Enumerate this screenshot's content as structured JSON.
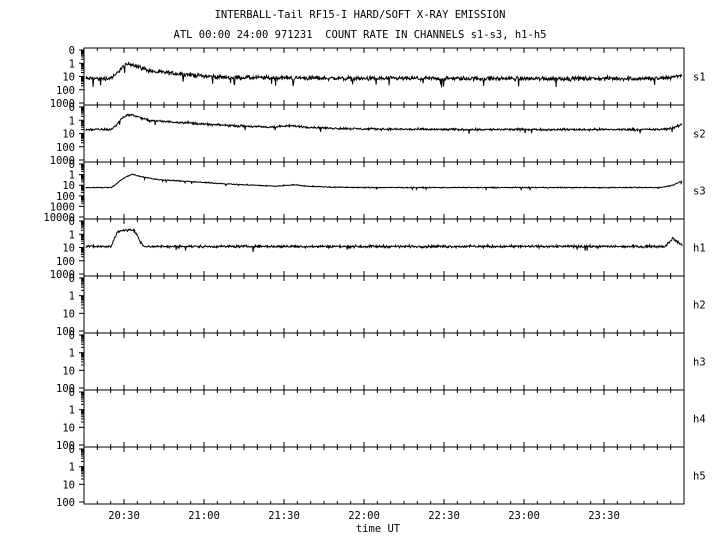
{
  "header": {
    "title": "INTERBALL-Tail RF15-I HARD/SOFT X-RAY EMISSION",
    "subtitle": "ATL 00:00 24:00 971231  COUNT RATE IN CHANNELS s1-s3, h1-h5"
  },
  "chart_data": {
    "type": "line",
    "layout": "stacked-panels",
    "xlabel": "time UT",
    "x_ticks": [
      "20:30",
      "21:00",
      "21:30",
      "22:00",
      "22:30",
      "23:00",
      "23:30"
    ],
    "x_tick_hours": [
      20.5,
      21.0,
      21.5,
      22.0,
      22.5,
      23.0,
      23.5
    ],
    "xlim_hours": [
      20.25,
      24.0
    ],
    "y_scale": "log",
    "panels": [
      {
        "channel": "s1",
        "y_tick_labels": [
          "1000",
          "100",
          "10",
          "1",
          "0"
        ],
        "y_tick_values": [
          1000,
          100,
          10,
          1,
          0
        ],
        "series": [
          {
            "t": 20.26,
            "v": 7
          },
          {
            "t": 20.3,
            "v": 7
          },
          {
            "t": 20.35,
            "v": 7
          },
          {
            "t": 20.4,
            "v": 7
          },
          {
            "t": 20.44,
            "v": 10
          },
          {
            "t": 20.47,
            "v": 30
          },
          {
            "t": 20.5,
            "v": 60
          },
          {
            "t": 20.53,
            "v": 90
          },
          {
            "t": 20.56,
            "v": 80
          },
          {
            "t": 20.6,
            "v": 50
          },
          {
            "t": 20.65,
            "v": 30
          },
          {
            "t": 20.7,
            "v": 22
          },
          {
            "t": 20.8,
            "v": 18
          },
          {
            "t": 20.9,
            "v": 14
          },
          {
            "t": 21.0,
            "v": 11
          },
          {
            "t": 21.1,
            "v": 9
          },
          {
            "t": 21.3,
            "v": 8
          },
          {
            "t": 21.5,
            "v": 8
          },
          {
            "t": 22.0,
            "v": 7
          },
          {
            "t": 22.5,
            "v": 7
          },
          {
            "t": 23.0,
            "v": 7
          },
          {
            "t": 23.5,
            "v": 7
          },
          {
            "t": 23.85,
            "v": 7
          },
          {
            "t": 23.93,
            "v": 9
          },
          {
            "t": 23.97,
            "v": 12
          },
          {
            "t": 23.99,
            "v": 10
          }
        ],
        "noise_decades": 0.14
      },
      {
        "channel": "s2",
        "y_tick_labels": [
          "1000",
          "100",
          "10",
          "1",
          "0"
        ],
        "y_tick_values": [
          1000,
          100,
          10,
          1,
          0
        ],
        "series": [
          {
            "t": 20.26,
            "v": 20
          },
          {
            "t": 20.35,
            "v": 20
          },
          {
            "t": 20.42,
            "v": 20
          },
          {
            "t": 20.45,
            "v": 40
          },
          {
            "t": 20.48,
            "v": 120
          },
          {
            "t": 20.52,
            "v": 250
          },
          {
            "t": 20.55,
            "v": 260
          },
          {
            "t": 20.6,
            "v": 160
          },
          {
            "t": 20.65,
            "v": 100
          },
          {
            "t": 20.75,
            "v": 80
          },
          {
            "t": 20.9,
            "v": 65
          },
          {
            "t": 21.0,
            "v": 50
          },
          {
            "t": 21.2,
            "v": 38
          },
          {
            "t": 21.4,
            "v": 30
          },
          {
            "t": 21.5,
            "v": 35
          },
          {
            "t": 21.55,
            "v": 38
          },
          {
            "t": 21.65,
            "v": 30
          },
          {
            "t": 21.8,
            "v": 25
          },
          {
            "t": 22.0,
            "v": 22
          },
          {
            "t": 22.5,
            "v": 20
          },
          {
            "t": 23.0,
            "v": 20
          },
          {
            "t": 23.5,
            "v": 20
          },
          {
            "t": 23.85,
            "v": 20
          },
          {
            "t": 23.93,
            "v": 25
          },
          {
            "t": 23.97,
            "v": 40
          },
          {
            "t": 23.99,
            "v": 50
          }
        ],
        "noise_decades": 0.07
      },
      {
        "channel": "s3",
        "y_tick_labels": [
          "10000",
          "1000",
          "100",
          "10",
          "1",
          "0"
        ],
        "y_tick_values": [
          10000,
          1000,
          100,
          10,
          1,
          0
        ],
        "series": [
          {
            "t": 20.26,
            "v": 60
          },
          {
            "t": 20.42,
            "v": 60
          },
          {
            "t": 20.45,
            "v": 120
          },
          {
            "t": 20.48,
            "v": 300
          },
          {
            "t": 20.52,
            "v": 700
          },
          {
            "t": 20.55,
            "v": 1100
          },
          {
            "t": 20.6,
            "v": 700
          },
          {
            "t": 20.7,
            "v": 350
          },
          {
            "t": 20.85,
            "v": 250
          },
          {
            "t": 21.0,
            "v": 180
          },
          {
            "t": 21.2,
            "v": 120
          },
          {
            "t": 21.45,
            "v": 80
          },
          {
            "t": 21.52,
            "v": 100
          },
          {
            "t": 21.56,
            "v": 110
          },
          {
            "t": 21.65,
            "v": 80
          },
          {
            "t": 21.8,
            "v": 65
          },
          {
            "t": 22.0,
            "v": 60
          },
          {
            "t": 22.5,
            "v": 60
          },
          {
            "t": 23.0,
            "v": 60
          },
          {
            "t": 23.5,
            "v": 60
          },
          {
            "t": 23.85,
            "v": 60
          },
          {
            "t": 23.93,
            "v": 100
          },
          {
            "t": 23.97,
            "v": 200
          },
          {
            "t": 23.99,
            "v": 260
          }
        ],
        "noise_decades": 0.04
      },
      {
        "channel": "h1",
        "y_tick_labels": [
          "1000",
          "100",
          "10",
          "1",
          "0"
        ],
        "y_tick_values": [
          1000,
          100,
          10,
          1,
          0
        ],
        "series": [
          {
            "t": 20.26,
            "v": 12
          },
          {
            "t": 20.42,
            "v": 12
          },
          {
            "t": 20.44,
            "v": 50
          },
          {
            "t": 20.46,
            "v": 150
          },
          {
            "t": 20.5,
            "v": 200
          },
          {
            "t": 20.54,
            "v": 230
          },
          {
            "t": 20.56,
            "v": 180
          },
          {
            "t": 20.58,
            "v": 100
          },
          {
            "t": 20.6,
            "v": 30
          },
          {
            "t": 20.62,
            "v": 12
          },
          {
            "t": 21.0,
            "v": 12
          },
          {
            "t": 21.5,
            "v": 12
          },
          {
            "t": 22.0,
            "v": 12
          },
          {
            "t": 22.5,
            "v": 12
          },
          {
            "t": 23.0,
            "v": 12
          },
          {
            "t": 23.5,
            "v": 12
          },
          {
            "t": 23.88,
            "v": 12
          },
          {
            "t": 23.93,
            "v": 50
          },
          {
            "t": 23.96,
            "v": 25
          },
          {
            "t": 23.99,
            "v": 15
          }
        ],
        "noise_decades": 0.08
      },
      {
        "channel": "h2",
        "y_tick_labels": [
          "100",
          "10",
          "1",
          "0"
        ],
        "y_tick_values": [
          100,
          10,
          1,
          0
        ],
        "series": []
      },
      {
        "channel": "h3",
        "y_tick_labels": [
          "100",
          "10",
          "1",
          "0"
        ],
        "y_tick_values": [
          100,
          10,
          1,
          0
        ],
        "series": []
      },
      {
        "channel": "h4",
        "y_tick_labels": [
          "100",
          "10",
          "1",
          "0"
        ],
        "y_tick_values": [
          100,
          10,
          1,
          0
        ],
        "series": []
      },
      {
        "channel": "h5",
        "y_tick_labels": [
          "100",
          "10",
          "1",
          "0"
        ],
        "y_tick_values": [
          100,
          10,
          1,
          0
        ],
        "series": []
      }
    ]
  }
}
